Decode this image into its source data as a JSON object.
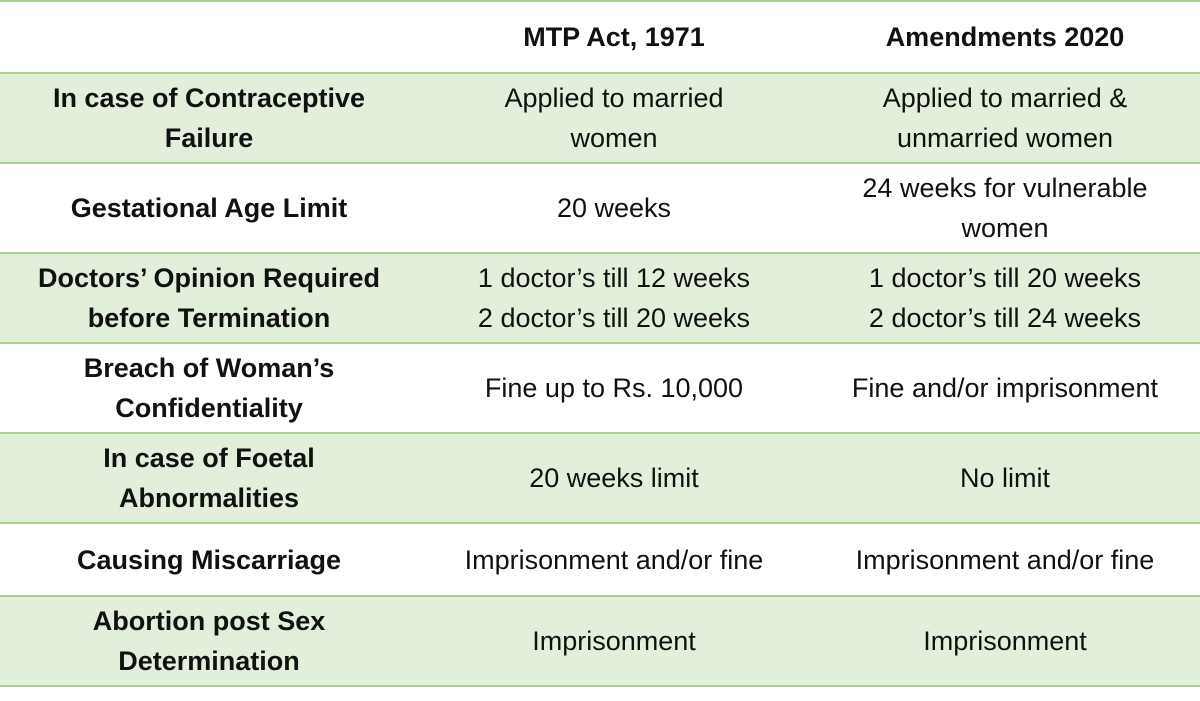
{
  "header": {
    "col1": "",
    "col2": "MTP Act, 1971",
    "col3": "Amendments 2020"
  },
  "rows": [
    {
      "label": [
        "In case of Contraceptive",
        "Failure"
      ],
      "mtp1971": [
        "Applied to married",
        "women"
      ],
      "amend2020": [
        "Applied to married &",
        "unmarried women"
      ]
    },
    {
      "label": [
        "Gestational Age Limit"
      ],
      "mtp1971": [
        "20 weeks"
      ],
      "amend2020": [
        "24 weeks for vulnerable",
        "women"
      ]
    },
    {
      "label": [
        "Doctors’ Opinion Required",
        "before Termination"
      ],
      "mtp1971": [
        "1 doctor’s till 12 weeks",
        "2 doctor’s till 20 weeks"
      ],
      "amend2020": [
        "1 doctor’s till 20 weeks",
        "2 doctor’s till 24 weeks"
      ]
    },
    {
      "label": [
        "Breach of Woman’s",
        "Confidentiality"
      ],
      "mtp1971": [
        "Fine up to Rs. 10,000"
      ],
      "amend2020": [
        "Fine and/or imprisonment"
      ]
    },
    {
      "label": [
        "In case of Foetal",
        "Abnormalities"
      ],
      "mtp1971": [
        "20 weeks limit"
      ],
      "amend2020": [
        "No limit"
      ]
    },
    {
      "label": [
        "Causing Miscarriage"
      ],
      "mtp1971": [
        "Imprisonment and/or fine"
      ],
      "amend2020": [
        "Imprisonment and/or fine"
      ]
    },
    {
      "label": [
        "Abortion post Sex",
        "Determination"
      ],
      "mtp1971": [
        "Imprisonment"
      ],
      "amend2020": [
        "Imprisonment"
      ]
    }
  ],
  "colors": {
    "shaded": "#e2efda",
    "border": "#a9d08e"
  }
}
